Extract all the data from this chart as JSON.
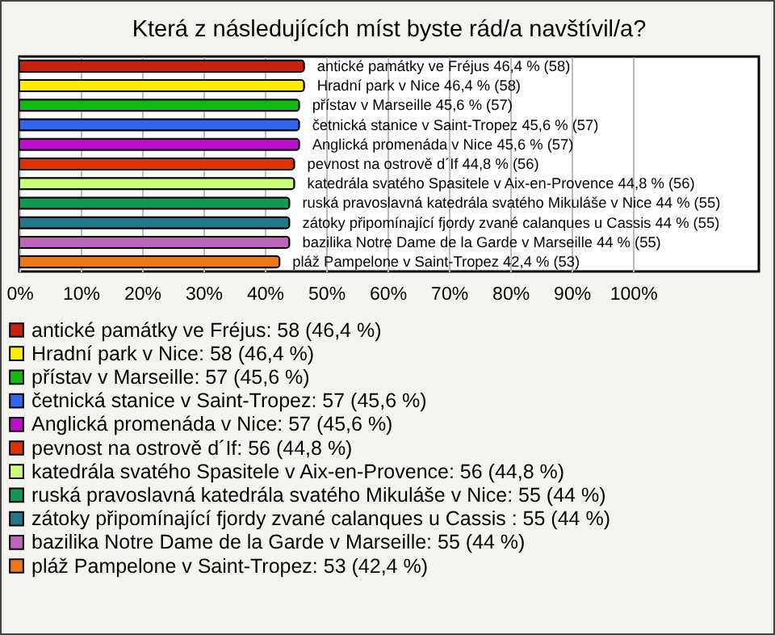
{
  "chart_data": {
    "type": "bar",
    "orientation": "horizontal",
    "title": "Která z následujících míst byste rád/a navštívil/a?",
    "categories": [
      null,
      null,
      null,
      null,
      null,
      null,
      null,
      null,
      null,
      null,
      null
    ],
    "series": [
      {
        "name": "antické památky ve Fréjus: 58 (46,4 %)",
        "color": "#c8200c",
        "values": [
          46.4,
          null,
          null,
          null,
          null,
          null,
          null,
          null,
          null,
          null,
          null
        ],
        "value_labels": [
          "antické památky ve Fréjus 46,4 % (58)",
          null,
          null,
          null,
          null,
          null,
          null,
          null,
          null,
          null,
          null
        ]
      },
      {
        "name": "Hradní park v Nice: 58 (46,4 %)",
        "color": "#ffee00",
        "values": [
          null,
          46.4,
          null,
          null,
          null,
          null,
          null,
          null,
          null,
          null,
          null
        ],
        "value_labels": [
          null,
          "Hradní park v Nice 46,4 % (58)",
          null,
          null,
          null,
          null,
          null,
          null,
          null,
          null,
          null
        ]
      },
      {
        "name": "přístav v Marseille: 57 (45,6 %)",
        "color": "#11bb11",
        "values": [
          null,
          null,
          45.6,
          null,
          null,
          null,
          null,
          null,
          null,
          null,
          null
        ],
        "value_labels": [
          null,
          null,
          "přístav v Marseille 45,6 % (57)",
          null,
          null,
          null,
          null,
          null,
          null,
          null,
          null
        ]
      },
      {
        "name": "četnická stanice v Saint-Tropez: 57 (45,6 %)",
        "color": "#3366ee",
        "values": [
          null,
          null,
          null,
          45.6,
          null,
          null,
          null,
          null,
          null,
          null,
          null
        ],
        "value_labels": [
          null,
          null,
          null,
          "četnická stanice v Saint-Tropez 45,6 % (57)",
          null,
          null,
          null,
          null,
          null,
          null,
          null
        ]
      },
      {
        "name": "Anglická promenáda v Nice: 57 (45,6 %)",
        "color": "#bb11cc",
        "values": [
          null,
          null,
          null,
          null,
          45.6,
          null,
          null,
          null,
          null,
          null,
          null
        ],
        "value_labels": [
          null,
          null,
          null,
          null,
          "Anglická promenáda v Nice 45,6 % (57)",
          null,
          null,
          null,
          null,
          null,
          null
        ]
      },
      {
        "name": "pevnost na ostrově d´If: 56 (44,8 %)",
        "color": "#dd3300",
        "values": [
          null,
          null,
          null,
          null,
          null,
          44.8,
          null,
          null,
          null,
          null,
          null
        ],
        "value_labels": [
          null,
          null,
          null,
          null,
          null,
          "pevnost na ostrově d´If 44,8 % (56)",
          null,
          null,
          null,
          null,
          null
        ]
      },
      {
        "name": "katedrála svatého Spasitele v Aix-en-Provence: 56 (44,8 %)",
        "color": "#ccff77",
        "values": [
          null,
          null,
          null,
          null,
          null,
          null,
          44.8,
          null,
          null,
          null,
          null
        ],
        "value_labels": [
          null,
          null,
          null,
          null,
          null,
          null,
          "katedrála svatého Spasitele v Aix-en-Provence 44,8 % (56)",
          null,
          null,
          null,
          null
        ]
      },
      {
        "name": "ruská pravoslavná katedrála svatého Mikuláše v Nice: 55 (44 %)",
        "color": "#119955",
        "values": [
          null,
          null,
          null,
          null,
          null,
          null,
          null,
          44,
          null,
          null,
          null
        ],
        "value_labels": [
          null,
          null,
          null,
          null,
          null,
          null,
          null,
          "ruská pravoslavná katedrála svatého Mikuláše v Nice 44 % (55)",
          null,
          null,
          null
        ]
      },
      {
        "name": "zátoky připomínající fjordy zvané calanques u Cassis : 55 (44 %)",
        "color": "#227788",
        "values": [
          null,
          null,
          null,
          null,
          null,
          null,
          null,
          null,
          44,
          null,
          null
        ],
        "value_labels": [
          null,
          null,
          null,
          null,
          null,
          null,
          null,
          null,
          "zátoky připomínající fjordy zvané calanques u Cassis  44 % (55)",
          null,
          null
        ]
      },
      {
        "name": "bazilika Notre Dame de la Garde v Marseille: 55 (44 %)",
        "color": "#bb66bb",
        "values": [
          null,
          null,
          null,
          null,
          null,
          null,
          null,
          null,
          null,
          44,
          null
        ],
        "value_labels": [
          null,
          null,
          null,
          null,
          null,
          null,
          null,
          null,
          null,
          "bazilika Notre Dame de la Garde v Marseille 44 % (55)",
          null
        ]
      },
      {
        "name": "pláž Pampelone v Saint-Tropez: 53 (42,4 %)",
        "color": "#ee7711",
        "values": [
          null,
          null,
          null,
          null,
          null,
          null,
          null,
          null,
          null,
          null,
          42.4
        ],
        "value_labels": [
          null,
          null,
          null,
          null,
          null,
          null,
          null,
          null,
          null,
          null,
          "pláž Pampelone v Saint-Tropez 42,4 % (53)"
        ]
      }
    ],
    "xlim": [
      0,
      120.5
    ],
    "xticks": [
      {
        "value": 0,
        "label": "0%"
      },
      {
        "value": 10,
        "label": "10%"
      },
      {
        "value": 20,
        "label": "20%"
      },
      {
        "value": 30,
        "label": "30%"
      },
      {
        "value": 40,
        "label": "40%"
      },
      {
        "value": 50,
        "label": "50%"
      },
      {
        "value": 60,
        "label": "60%"
      },
      {
        "value": 70,
        "label": "70%"
      },
      {
        "value": 80,
        "label": "80%"
      },
      {
        "value": 90,
        "label": "90%"
      },
      {
        "value": 100,
        "label": "100%"
      }
    ],
    "grid": "x",
    "legend": "bottom"
  }
}
